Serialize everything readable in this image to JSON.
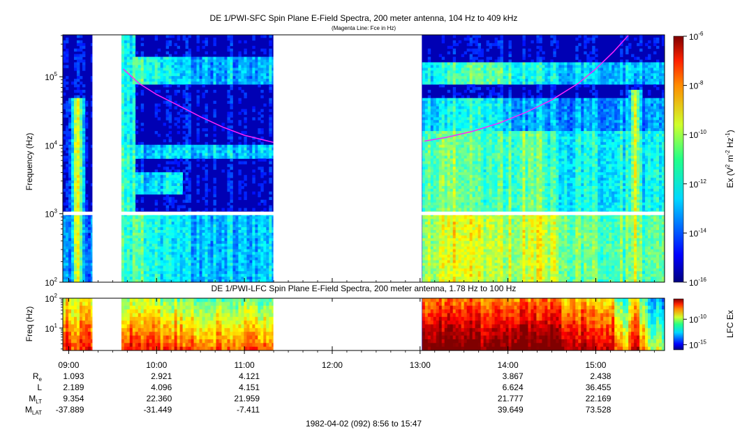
{
  "chart_data": [
    {
      "type": "heatmap",
      "title": "DE 1/PWI-SFC  Spin Plane E-Field Spectra, 200 meter antenna, 104 Hz to 409 kHz",
      "subtitle": "(Magenta Line: Fce in Hz)",
      "ylabel": "Frequency (Hz)",
      "yscale": "log",
      "ylim": [
        100,
        409000
      ],
      "yticks": [
        {
          "base": "10",
          "exp": "2"
        },
        {
          "base": "10",
          "exp": "3"
        },
        {
          "base": "10",
          "exp": "4"
        },
        {
          "base": "10",
          "exp": "5"
        }
      ],
      "colorbar": {
        "label": "Ex (V² m⁻² Hz⁻¹)",
        "label_parts": {
          "pre": "Ex (V",
          "sup1": "2",
          "mid": " m",
          "sup2": "-2",
          "mid2": " Hz",
          "sup3": "-1",
          "post": ")"
        },
        "ticks": [
          {
            "base": "10",
            "exp": "-6"
          },
          {
            "base": "10",
            "exp": "-8"
          },
          {
            "base": "10",
            "exp": "-10"
          },
          {
            "base": "10",
            "exp": "-12"
          },
          {
            "base": "10",
            "exp": "-14"
          },
          {
            "base": "10",
            "exp": "-16"
          }
        ],
        "range": [
          -16,
          -6
        ]
      },
      "data_gaps_hours": [
        [
          9.27,
          9.6
        ],
        [
          11.33,
          13.02
        ]
      ],
      "fce_line": {
        "color": "#ff22ff",
        "segments": [
          {
            "x": [
              9.62,
              9.8,
              10.0,
              10.25,
              10.5,
              10.75,
              11.0,
              11.33
            ],
            "fce": [
              130000,
              80000,
              55000,
              38000,
              26000,
              18500,
              14000,
              11000
            ]
          },
          {
            "x": [
              13.05,
              13.3,
              13.6,
              13.9,
              14.2,
              14.5,
              14.8,
              15.0,
              15.2,
              15.37
            ],
            "fce": [
              11500,
              13000,
              16000,
              21000,
              30000,
              46000,
              80000,
              130000,
              230000,
              400000
            ]
          }
        ]
      }
    },
    {
      "type": "heatmap",
      "title": "DE 1/PWI-LFC  Spin Plane E-Field Spectra, 200 meter antenna, 1.78 Hz to 100 Hz",
      "ylabel": "Freq (Hz)",
      "yscale": "log",
      "ylim": [
        1.78,
        100
      ],
      "yticks": [
        {
          "base": "10",
          "exp": "1"
        },
        {
          "base": "10",
          "exp": "2"
        }
      ],
      "colorbar": {
        "label": "LFC Ex",
        "ticks": [
          {
            "base": "10",
            "exp": "-10"
          },
          {
            "base": "10",
            "exp": "-15"
          }
        ],
        "range": [
          -16,
          -6
        ]
      },
      "data_gaps_hours": [
        [
          9.27,
          9.6
        ],
        [
          11.33,
          13.02
        ]
      ]
    }
  ],
  "time_axis": {
    "range_hours": [
      8.933,
      15.783
    ],
    "ticks": [
      "09:00",
      "10:00",
      "11:00",
      "12:00",
      "13:00",
      "14:00",
      "15:00"
    ]
  },
  "ephemeris": {
    "labels": [
      {
        "main": "R",
        "sub": "e"
      },
      {
        "main": "L",
        "sub": ""
      },
      {
        "main": "M",
        "sub": "LT"
      },
      {
        "main": "M",
        "sub": "LAT"
      }
    ],
    "columns": [
      {
        "time": "09:00",
        "Re": "1.093",
        "L": "2.189",
        "MLT": "9.354",
        "MLAT": "-37.889"
      },
      {
        "time": "10:00",
        "Re": "2.921",
        "L": "4.096",
        "MLT": "22.360",
        "MLAT": "-31.449"
      },
      {
        "time": "11:00",
        "Re": "4.121",
        "L": "4.151",
        "MLT": "21.959",
        "MLAT": "-7.411"
      },
      {
        "time": "14:00",
        "Re": "3.867",
        "L": "6.624",
        "MLT": "21.777",
        "MLAT": "39.649"
      },
      {
        "time": "15:00",
        "Re": "2.438",
        "L": "36.455",
        "MLT": "22.169",
        "MLAT": "73.528"
      }
    ]
  },
  "footer": "1982-04-02 (092) 8:56 to 15:47"
}
